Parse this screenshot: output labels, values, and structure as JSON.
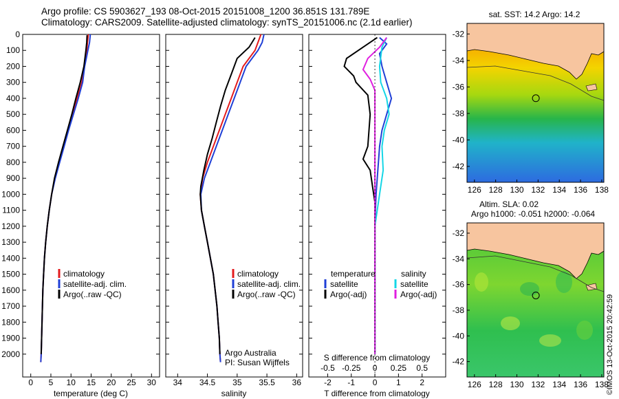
{
  "header": {
    "line1": "Argo profile: CS 5903627_193 08-Oct-2015 20151008_1200 36.851S 131.789E",
    "line2": "Climatology: CARS2009. Satellite-adjusted climatology: synTS_20151006.nc (2.1d earlier)"
  },
  "credit": "©IMOS 13-Oct-2015 20:42:59",
  "colors": {
    "climatology": "#e31a1c",
    "satellite": "#1f3fd6",
    "argo": "#000000",
    "sat_salinity": "#14d6e6",
    "argo_salinity": "#e01ee0",
    "land": "#f7c59f"
  },
  "chart_data": [
    {
      "type": "line",
      "panel": "temperature",
      "xlabel": "temperature (deg C)",
      "xlim": [
        -2,
        32
      ],
      "xticks": [
        0,
        5,
        10,
        15,
        20,
        25,
        30
      ],
      "ylim": [
        2100,
        0
      ],
      "yticks": [
        0,
        100,
        200,
        300,
        400,
        500,
        600,
        700,
        800,
        900,
        1000,
        1100,
        1200,
        1300,
        1400,
        1500,
        1600,
        1700,
        1800,
        1900,
        2000
      ],
      "legend": [
        "climatology",
        "satellite-adj. clim.",
        "Argo(..raw -QC)"
      ],
      "series": [
        {
          "name": "climatology",
          "color": "#e31a1c",
          "points": [
            [
              14.3,
              0
            ],
            [
              14.1,
              50
            ],
            [
              13.9,
              100
            ],
            [
              13.3,
              200
            ],
            [
              12.7,
              300
            ],
            [
              11.5,
              400
            ],
            [
              10.4,
              500
            ],
            [
              9.3,
              600
            ],
            [
              8.2,
              700
            ],
            [
              7.1,
              800
            ],
            [
              6.0,
              900
            ],
            [
              5.2,
              1000
            ],
            [
              4.6,
              1100
            ],
            [
              4.1,
              1200
            ],
            [
              3.7,
              1300
            ],
            [
              3.4,
              1400
            ],
            [
              3.2,
              1500
            ],
            [
              3.0,
              1600
            ],
            [
              2.9,
              1700
            ],
            [
              2.8,
              1800
            ],
            [
              2.7,
              1900
            ],
            [
              2.6,
              2000
            ],
            [
              2.5,
              2050
            ]
          ]
        },
        {
          "name": "satellite-adj. clim.",
          "color": "#1f3fd6",
          "points": [
            [
              14.8,
              0
            ],
            [
              14.6,
              50
            ],
            [
              14.2,
              100
            ],
            [
              13.4,
              200
            ],
            [
              12.9,
              300
            ],
            [
              11.8,
              400
            ],
            [
              10.6,
              500
            ],
            [
              9.4,
              600
            ],
            [
              8.3,
              700
            ],
            [
              7.2,
              800
            ],
            [
              6.1,
              900
            ],
            [
              5.2,
              1000
            ],
            [
              4.6,
              1100
            ],
            [
              4.1,
              1200
            ],
            [
              3.7,
              1300
            ],
            [
              3.4,
              1400
            ],
            [
              3.2,
              1500
            ],
            [
              3.0,
              1600
            ],
            [
              2.9,
              1700
            ],
            [
              2.8,
              1800
            ],
            [
              2.7,
              1900
            ],
            [
              2.6,
              2000
            ],
            [
              2.5,
              2050
            ]
          ]
        },
        {
          "name": "Argo(..raw -QC)",
          "color": "#000000",
          "points": [
            [
              14.0,
              5
            ],
            [
              13.9,
              50
            ],
            [
              13.7,
              100
            ],
            [
              13.2,
              200
            ],
            [
              12.3,
              300
            ],
            [
              11.2,
              400
            ],
            [
              10.2,
              500
            ],
            [
              9.1,
              600
            ],
            [
              8.0,
              700
            ],
            [
              6.9,
              800
            ],
            [
              5.9,
              900
            ],
            [
              5.2,
              1000
            ],
            [
              4.6,
              1100
            ],
            [
              4.1,
              1200
            ],
            [
              3.7,
              1300
            ],
            [
              3.4,
              1400
            ],
            [
              3.2,
              1500
            ],
            [
              3.0,
              1600
            ],
            [
              2.9,
              1700
            ],
            [
              2.8,
              1800
            ],
            [
              2.7,
              1900
            ],
            [
              2.6,
              2000
            ]
          ]
        }
      ]
    },
    {
      "type": "line",
      "panel": "salinity",
      "xlabel": "salinity",
      "xlim": [
        33.8,
        36.1
      ],
      "xticks": [
        34,
        34.5,
        35,
        35.5,
        36
      ],
      "ylim": [
        2100,
        0
      ],
      "legend": [
        "climatology",
        "satellite-adj. clim.",
        "Argo(..raw -QC)"
      ],
      "annotation": [
        "Argo Australia",
        "PI: Susan Wijffels"
      ],
      "series": [
        {
          "name": "climatology",
          "color": "#e31a1c",
          "points": [
            [
              35.4,
              0
            ],
            [
              35.35,
              50
            ],
            [
              35.3,
              100
            ],
            [
              35.1,
              200
            ],
            [
              35.0,
              300
            ],
            [
              34.9,
              400
            ],
            [
              34.8,
              500
            ],
            [
              34.7,
              600
            ],
            [
              34.6,
              700
            ],
            [
              34.5,
              800
            ],
            [
              34.42,
              900
            ],
            [
              34.38,
              1000
            ],
            [
              34.4,
              1100
            ],
            [
              34.45,
              1200
            ],
            [
              34.5,
              1300
            ],
            [
              34.55,
              1400
            ],
            [
              34.6,
              1500
            ],
            [
              34.63,
              1600
            ],
            [
              34.66,
              1700
            ],
            [
              34.68,
              1800
            ],
            [
              34.7,
              1900
            ],
            [
              34.71,
              2000
            ],
            [
              34.72,
              2050
            ]
          ]
        },
        {
          "name": "satellite-adj. clim.",
          "color": "#1f3fd6",
          "points": [
            [
              35.45,
              0
            ],
            [
              35.42,
              50
            ],
            [
              35.35,
              100
            ],
            [
              35.15,
              200
            ],
            [
              35.05,
              300
            ],
            [
              34.95,
              400
            ],
            [
              34.85,
              500
            ],
            [
              34.75,
              600
            ],
            [
              34.65,
              700
            ],
            [
              34.55,
              800
            ],
            [
              34.45,
              900
            ],
            [
              34.39,
              1000
            ],
            [
              34.4,
              1100
            ],
            [
              34.45,
              1200
            ],
            [
              34.5,
              1300
            ],
            [
              34.55,
              1400
            ],
            [
              34.6,
              1500
            ],
            [
              34.63,
              1600
            ],
            [
              34.66,
              1700
            ],
            [
              34.68,
              1800
            ],
            [
              34.7,
              1900
            ],
            [
              34.71,
              2000
            ],
            [
              34.72,
              2050
            ]
          ]
        },
        {
          "name": "Argo(..raw -QC)",
          "color": "#000000",
          "points": [
            [
              35.3,
              20
            ],
            [
              35.25,
              50
            ],
            [
              35.2,
              80
            ],
            [
              35.0,
              150
            ],
            [
              34.9,
              250
            ],
            [
              34.8,
              350
            ],
            [
              34.72,
              450
            ],
            [
              34.65,
              550
            ],
            [
              34.58,
              650
            ],
            [
              34.5,
              750
            ],
            [
              34.44,
              850
            ],
            [
              34.39,
              950
            ],
            [
              34.38,
              1000
            ],
            [
              34.4,
              1100
            ],
            [
              34.45,
              1200
            ],
            [
              34.5,
              1300
            ],
            [
              34.55,
              1400
            ],
            [
              34.6,
              1500
            ],
            [
              34.63,
              1600
            ],
            [
              34.66,
              1700
            ],
            [
              34.68,
              1800
            ],
            [
              34.7,
              1900
            ],
            [
              34.71,
              2000
            ]
          ]
        }
      ]
    },
    {
      "type": "line",
      "panel": "difference",
      "xlabel": "T difference from climatology",
      "xlabel2": "S difference from climatology",
      "xlim": [
        -2.8,
        3.0
      ],
      "xticks": [
        -2,
        -1,
        0,
        1,
        2
      ],
      "sticks": [
        "-0.5",
        "-0.25",
        "0",
        "0.25",
        "0.5"
      ],
      "legend_headers": [
        "temperature",
        "salinity"
      ],
      "series": [
        {
          "name": "satellite",
          "group": "temperature",
          "color": "#1f3fd6",
          "points": [
            [
              0.2,
              20
            ],
            [
              0.5,
              60
            ],
            [
              0.2,
              120
            ],
            [
              0.3,
              200
            ],
            [
              0.5,
              300
            ],
            [
              0.7,
              400
            ],
            [
              0.5,
              500
            ],
            [
              0.3,
              600
            ],
            [
              0.2,
              700
            ],
            [
              0.15,
              800
            ],
            [
              0.1,
              900
            ],
            [
              0.05,
              1000
            ],
            [
              0.02,
              1100
            ],
            [
              0.0,
              1200
            ],
            [
              0.0,
              1400
            ],
            [
              0.0,
              1600
            ],
            [
              0.0,
              1800
            ],
            [
              0.0,
              2000
            ]
          ]
        },
        {
          "name": "Argo(-adj)",
          "group": "temperature",
          "color": "#000000",
          "points": [
            [
              0.1,
              20
            ],
            [
              -0.5,
              80
            ],
            [
              -1.2,
              150
            ],
            [
              -1.3,
              200
            ],
            [
              -0.9,
              260
            ],
            [
              -0.8,
              300
            ],
            [
              -0.3,
              380
            ],
            [
              -0.2,
              500
            ],
            [
              -0.3,
              700
            ],
            [
              -0.5,
              780
            ],
            [
              -0.2,
              850
            ],
            [
              -0.1,
              950
            ],
            [
              0.0,
              1050
            ],
            [
              0.0,
              1200
            ],
            [
              0.0,
              1500
            ],
            [
              0.0,
              1800
            ],
            [
              0.0,
              2000
            ]
          ]
        },
        {
          "name": "satellite",
          "group": "salinity",
          "color": "#14d6e6",
          "points": [
            [
              0.5,
              20
            ],
            [
              0.3,
              80
            ],
            [
              0.2,
              200
            ],
            [
              0.25,
              300
            ],
            [
              0.5,
              400
            ],
            [
              0.6,
              500
            ],
            [
              0.4,
              600
            ],
            [
              0.3,
              700
            ],
            [
              0.35,
              850
            ],
            [
              0.2,
              1000
            ],
            [
              0.1,
              1100
            ],
            [
              0.0,
              1200
            ],
            [
              0.0,
              1500
            ],
            [
              0.0,
              1800
            ],
            [
              0.0,
              2000
            ]
          ]
        },
        {
          "name": "Argo(-adj)",
          "group": "salinity",
          "color": "#e01ee0",
          "points": [
            [
              0.5,
              20
            ],
            [
              0.2,
              80
            ],
            [
              -0.3,
              150
            ],
            [
              -0.5,
              220
            ],
            [
              -0.2,
              280
            ],
            [
              0.0,
              350
            ],
            [
              0.0,
              500
            ],
            [
              0.0,
              1000
            ],
            [
              0.0,
              1500
            ],
            [
              0.0,
              2000
            ]
          ]
        }
      ]
    },
    {
      "type": "heatmap",
      "panel": "map_sst",
      "title": "sat. SST: 14.2 Argo: 14.2",
      "xticks": [
        126,
        128,
        130,
        132,
        134,
        136,
        138
      ],
      "yticks": [
        -32,
        -34,
        -36,
        -38,
        -40,
        -42
      ],
      "xlim": [
        125.3,
        138.2
      ],
      "ylim": [
        -43.2,
        -31.2
      ],
      "argo_position": [
        131.789,
        -36.851
      ]
    },
    {
      "type": "heatmap",
      "panel": "map_sla",
      "title": "Altim. SLA: 0.02",
      "subtitle": "Argo h1000: -0.051 h2000: -0.064",
      "xticks": [
        126,
        128,
        130,
        132,
        134,
        136,
        138
      ],
      "yticks": [
        -32,
        -34,
        -36,
        -38,
        -40,
        -42
      ],
      "xlim": [
        125.3,
        138.2
      ],
      "ylim": [
        -43.2,
        -31.2
      ],
      "argo_position": [
        131.789,
        -36.851
      ]
    }
  ]
}
